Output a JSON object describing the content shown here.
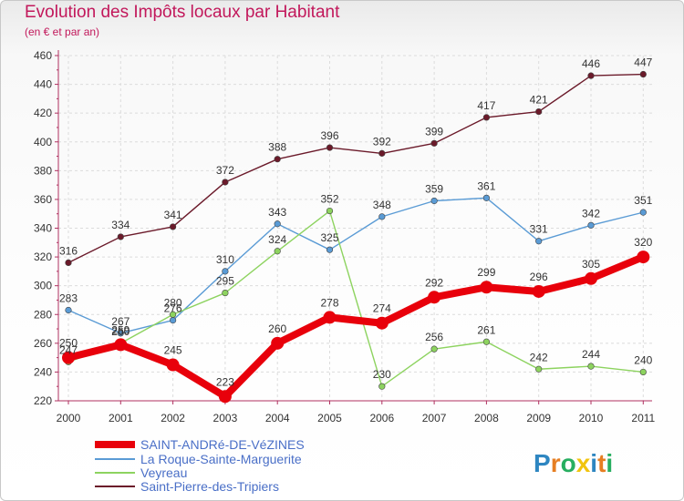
{
  "title": "Evolution des Impôts locaux par Habitant",
  "subtitle": "(en € et par an)",
  "logo": {
    "letters": [
      "P",
      "r",
      "o",
      "x",
      "i",
      "t",
      "i"
    ],
    "colors": [
      "#2e86c1",
      "#e67e22",
      "#27ae60",
      "#f1c40f",
      "#2e86c1",
      "#e67e22",
      "#27ae60"
    ]
  },
  "chart_data": {
    "type": "line",
    "categories": [
      "2000",
      "2001",
      "2002",
      "2003",
      "2004",
      "2005",
      "2006",
      "2007",
      "2008",
      "2009",
      "2010",
      "2011"
    ],
    "yticks": [
      220,
      240,
      260,
      280,
      300,
      320,
      340,
      360,
      380,
      400,
      420,
      440,
      460
    ],
    "ylim": [
      220,
      460
    ],
    "series": [
      {
        "name": "Saint-Pierre-des-Tripiers",
        "color": "#6b1a2a",
        "bold": false,
        "values": [
          316,
          334,
          341,
          372,
          388,
          396,
          392,
          399,
          417,
          421,
          446,
          447
        ]
      },
      {
        "name": "La Roque-Sainte-Marguerite",
        "color": "#5a9bd5",
        "bold": false,
        "values": [
          283,
          267,
          276,
          310,
          343,
          325,
          348,
          359,
          361,
          331,
          342,
          351
        ]
      },
      {
        "name": "Veyreau",
        "color": "#8dd35f",
        "bold": false,
        "values": [
          247,
          260,
          280,
          295,
          324,
          352,
          230,
          256,
          261,
          242,
          244,
          240
        ]
      },
      {
        "name": "SAINT-ANDRé-DE-VéZINES",
        "color": "#e8000b",
        "bold": true,
        "values": [
          250,
          259,
          245,
          223,
          260,
          278,
          274,
          292,
          299,
          296,
          305,
          320
        ]
      }
    ],
    "legend_order": [
      3,
      1,
      2,
      0
    ]
  }
}
